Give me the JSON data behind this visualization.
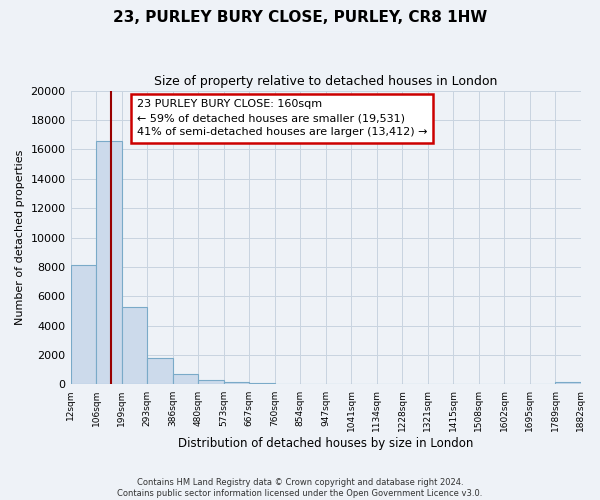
{
  "title": "23, PURLEY BURY CLOSE, PURLEY, CR8 1HW",
  "subtitle": "Size of property relative to detached houses in London",
  "xlabel": "Distribution of detached houses by size in London",
  "ylabel": "Number of detached properties",
  "bar_edges": [
    12,
    106,
    199,
    293,
    386,
    480,
    573,
    667,
    760,
    854,
    947,
    1041,
    1134,
    1228,
    1321,
    1415,
    1508,
    1602,
    1695,
    1789,
    1882
  ],
  "bar_heights": [
    8100,
    16600,
    5300,
    1800,
    700,
    300,
    200,
    100,
    0,
    0,
    0,
    0,
    0,
    0,
    0,
    0,
    0,
    0,
    0,
    150
  ],
  "bar_color": "#ccdaeb",
  "bar_edge_color": "#7aaac8",
  "red_line_x": 160,
  "annotation_title": "23 PURLEY BURY CLOSE: 160sqm",
  "annotation_line1": "← 59% of detached houses are smaller (19,531)",
  "annotation_line2": "41% of semi-detached houses are larger (13,412) →",
  "annotation_box_color": "#ffffff",
  "annotation_box_edge": "#cc0000",
  "ylim": [
    0,
    20000
  ],
  "yticks": [
    0,
    2000,
    4000,
    6000,
    8000,
    10000,
    12000,
    14000,
    16000,
    18000,
    20000
  ],
  "x_tick_labels": [
    "12sqm",
    "106sqm",
    "199sqm",
    "293sqm",
    "386sqm",
    "480sqm",
    "573sqm",
    "667sqm",
    "760sqm",
    "854sqm",
    "947sqm",
    "1041sqm",
    "1134sqm",
    "1228sqm",
    "1321sqm",
    "1415sqm",
    "1508sqm",
    "1602sqm",
    "1695sqm",
    "1789sqm",
    "1882sqm"
  ],
  "footer_line1": "Contains HM Land Registry data © Crown copyright and database right 2024.",
  "footer_line2": "Contains public sector information licensed under the Open Government Licence v3.0.",
  "bg_color": "#eef2f7",
  "grid_color": "#c8d4e0",
  "title_fontsize": 11,
  "subtitle_fontsize": 9,
  "ylabel_fontsize": 8,
  "xlabel_fontsize": 8.5,
  "ytick_fontsize": 8,
  "xtick_fontsize": 6.5,
  "annot_fontsize": 8,
  "footer_fontsize": 6
}
